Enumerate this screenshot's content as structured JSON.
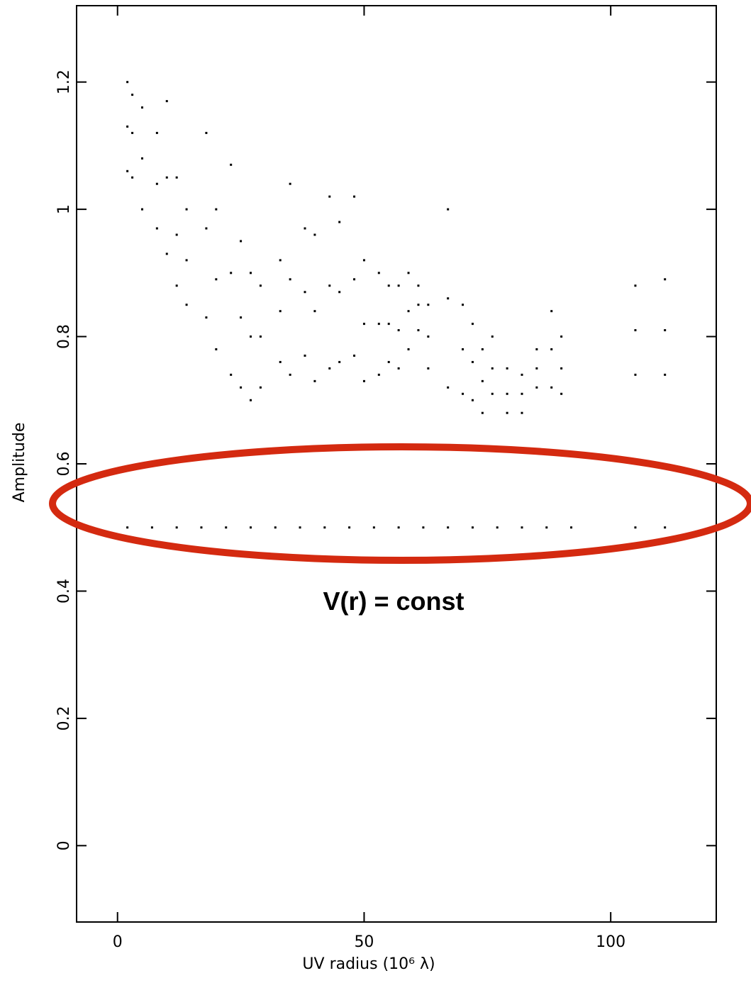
{
  "chart_data": {
    "type": "scatter",
    "xlabel": "UV radius  (10⁶ λ)",
    "ylabel": "Amplitude",
    "annotation": "V(r) = const",
    "xlim": [
      -8.3,
      121.4
    ],
    "ylim": [
      -0.12,
      1.32
    ],
    "xticks": [
      0,
      50,
      100
    ],
    "yticks": [
      0,
      0.2,
      0.4,
      0.6,
      0.8,
      1,
      1.2
    ],
    "series": [
      {
        "color": "#000000",
        "x": [
          2,
          2,
          2,
          3,
          3,
          3,
          5,
          5,
          5,
          8,
          8,
          8,
          10,
          10,
          10,
          12,
          12,
          12,
          14,
          14,
          14,
          18,
          18,
          18,
          20,
          20,
          20,
          23,
          23,
          23,
          25,
          25,
          25,
          27,
          27,
          27,
          29,
          29,
          29,
          33,
          33,
          33,
          35,
          35,
          35,
          38,
          38,
          38,
          40,
          40,
          40,
          43,
          43,
          43,
          45,
          45,
          45,
          48,
          48,
          48,
          50,
          50,
          50,
          53,
          53,
          53,
          55,
          55,
          55,
          57,
          57,
          57,
          59,
          59,
          59,
          61,
          61,
          61,
          63,
          63,
          63,
          67,
          67,
          67,
          70,
          70,
          70,
          72,
          72,
          72,
          74,
          74,
          74,
          76,
          76,
          76,
          79,
          79,
          79,
          82,
          82,
          82,
          85,
          85,
          85,
          88,
          88,
          88,
          90,
          90,
          90,
          105,
          105,
          105,
          111,
          111,
          111
        ],
        "y": [
          1.06,
          1.13,
          1.2,
          1.05,
          1.12,
          1.18,
          1.0,
          1.08,
          1.16,
          0.97,
          1.04,
          1.12,
          0.93,
          1.05,
          1.17,
          0.88,
          0.96,
          1.05,
          0.85,
          0.92,
          1.0,
          0.83,
          0.97,
          1.12,
          0.78,
          0.89,
          1.0,
          0.74,
          0.9,
          1.07,
          0.72,
          0.83,
          0.95,
          0.7,
          0.8,
          0.9,
          0.72,
          0.8,
          0.88,
          0.76,
          0.84,
          0.92,
          0.74,
          0.89,
          1.04,
          0.77,
          0.87,
          0.97,
          0.73,
          0.84,
          0.96,
          0.75,
          0.88,
          1.02,
          0.76,
          0.87,
          0.98,
          0.77,
          0.89,
          1.02,
          0.73,
          0.82,
          0.92,
          0.74,
          0.82,
          0.9,
          0.76,
          0.82,
          0.88,
          0.75,
          0.81,
          0.88,
          0.78,
          0.84,
          0.9,
          0.81,
          0.85,
          0.88,
          0.75,
          0.8,
          0.85,
          0.72,
          0.86,
          1.0,
          0.71,
          0.78,
          0.85,
          0.7,
          0.76,
          0.82,
          0.68,
          0.73,
          0.78,
          0.71,
          0.75,
          0.8,
          0.68,
          0.71,
          0.75,
          0.68,
          0.71,
          0.74,
          0.72,
          0.75,
          0.78,
          0.72,
          0.78,
          0.84,
          0.71,
          0.75,
          0.8,
          0.74,
          0.81,
          0.88,
          0.74,
          0.81,
          0.89
        ]
      },
      {
        "color": "#000000",
        "x": [
          2,
          7,
          12,
          17,
          22,
          27,
          32,
          37,
          42,
          47,
          52,
          57,
          62,
          67,
          72,
          77,
          82,
          87,
          92,
          105,
          111
        ],
        "y": [
          0.5,
          0.5,
          0.5,
          0.5,
          0.5,
          0.5,
          0.5,
          0.5,
          0.5,
          0.5,
          0.5,
          0.5,
          0.5,
          0.5,
          0.5,
          0.5,
          0.5,
          0.5,
          0.5,
          0.5,
          0.5
        ]
      }
    ]
  }
}
